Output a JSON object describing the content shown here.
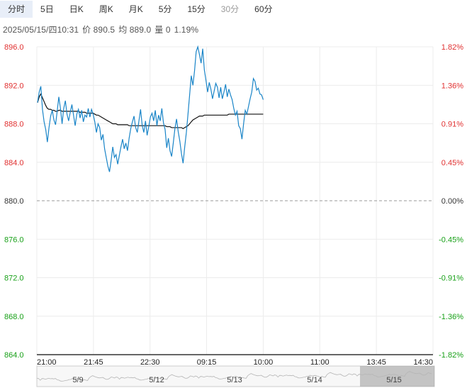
{
  "tabs": [
    {
      "label": "分时",
      "state": "active"
    },
    {
      "label": "5日",
      "state": "normal"
    },
    {
      "label": "日K",
      "state": "normal"
    },
    {
      "label": "周K",
      "state": "normal"
    },
    {
      "label": "月K",
      "state": "normal"
    },
    {
      "label": "5分",
      "state": "normal"
    },
    {
      "label": "15分",
      "state": "normal"
    },
    {
      "label": "30分",
      "state": "muted"
    },
    {
      "label": "60分",
      "state": "normal"
    }
  ],
  "info": {
    "datetime": "2025/05/15/四10:31",
    "price": "价 890.5",
    "avg": "均 889.0",
    "volume": "量 0",
    "change": "1.19%"
  },
  "colors": {
    "up": "#e03030",
    "down": "#18a018",
    "neutral": "#333333",
    "price_line": "#1a85c8",
    "avg_line": "#111111"
  },
  "chart_data": {
    "type": "line",
    "y_left_ticks": [
      "896.0",
      "892.0",
      "888.0",
      "884.0",
      "880.0",
      "876.0",
      "872.0",
      "868.0",
      "864.0"
    ],
    "y_right_ticks": [
      "1.82%",
      "1.36%",
      "0.91%",
      "0.45%",
      "0.00%",
      "-0.45%",
      "-0.91%",
      "-1.36%",
      "-1.82%"
    ],
    "ylim": [
      864.0,
      896.0
    ],
    "baseline": 880.0,
    "x_ticks": [
      "21:00",
      "21:45",
      "22:30",
      "09:15",
      "10:00",
      "11:00",
      "13:45",
      "14:30"
    ],
    "navigator_dates": [
      "5/9",
      "5/12",
      "5/13",
      "5/14",
      "5/15"
    ],
    "series": [
      {
        "values": [
          890.2,
          891.3,
          891.9,
          889.5,
          888.2,
          887.4,
          886.1,
          887.6,
          888.8,
          889.4,
          888.4,
          887.9,
          889.3,
          890.8,
          889.6,
          888.0,
          889.6,
          890.4,
          889.0,
          888.3,
          889.2,
          890.0,
          888.9,
          887.8,
          889.0,
          889.5,
          888.6,
          889.4,
          888.2,
          888.9,
          888.7,
          889.6,
          888.7,
          889.5,
          889.0,
          888.2,
          887.1,
          888.0,
          887.6,
          886.3,
          886.9,
          885.4,
          884.5,
          883.6,
          883.0,
          884.2,
          885.6,
          884.5,
          884.8,
          883.8,
          884.7,
          885.6,
          886.4,
          885.4,
          886.0,
          885.2,
          886.5,
          887.5,
          888.2,
          888.8,
          887.6,
          887.1,
          888.3,
          889.5,
          887.8,
          887.1,
          888.3,
          886.8,
          887.7,
          888.7,
          889.1,
          888.3,
          889.4,
          887.8,
          888.9,
          888.3,
          889.6,
          888.1,
          887.4,
          885.5,
          886.5,
          885.2,
          884.6,
          886.0,
          887.5,
          888.5,
          887.2,
          886.2,
          884.9,
          883.9,
          885.6,
          887.1,
          889.0,
          891.0,
          893.0,
          892.0,
          893.5,
          895.5,
          896.0,
          895.2,
          894.3,
          895.8,
          893.6,
          892.5,
          891.3,
          892.3,
          891.6,
          890.6,
          891.4,
          892.2,
          891.8,
          890.7,
          891.8,
          890.6,
          891.3,
          892.1,
          890.8,
          891.6,
          891.0,
          890.5,
          889.6,
          888.9,
          889.3,
          887.8,
          887.5,
          886.4,
          888.0,
          889.4,
          889.0,
          889.8,
          890.6,
          891.3,
          892.7,
          892.4,
          891.5,
          891.7,
          891.1,
          891.0,
          890.5
        ],
        "avg": [
          890.2,
          890.8,
          891.1,
          890.7,
          890.3,
          889.9,
          889.6,
          889.5,
          889.5,
          889.4,
          889.4,
          889.3,
          889.3,
          889.4,
          889.4,
          889.3,
          889.3,
          889.3,
          889.3,
          889.3,
          889.3,
          889.3,
          889.3,
          889.3,
          889.3,
          889.3,
          889.2,
          889.2,
          889.2,
          889.2,
          889.1,
          889.1,
          889.1,
          889.1,
          889.1,
          889.0,
          888.9,
          888.9,
          888.8,
          888.7,
          888.6,
          888.5,
          888.4,
          888.3,
          888.2,
          888.1,
          888.0,
          888.0,
          888.0,
          887.9,
          887.9,
          887.9,
          887.9,
          887.9,
          887.9,
          887.9,
          887.8,
          887.8,
          887.8,
          887.8,
          887.8,
          887.8,
          887.8,
          887.8,
          887.8,
          887.8,
          887.8,
          887.8,
          887.8,
          887.8,
          887.8,
          887.8,
          887.8,
          887.8,
          887.8,
          887.8,
          887.8,
          887.8,
          887.8,
          887.7,
          887.7,
          887.7,
          887.6,
          887.6,
          887.6,
          887.6,
          887.6,
          887.6,
          887.6,
          887.5,
          887.6,
          887.7,
          887.8,
          888.0,
          888.2,
          888.4,
          888.5,
          888.6,
          888.7,
          888.8,
          888.8,
          888.8,
          888.9,
          888.9,
          888.9,
          888.9,
          888.9,
          888.9,
          888.9,
          888.9,
          888.9,
          888.9,
          888.9,
          888.9,
          888.9,
          888.9,
          888.9,
          889.0,
          889.0,
          889.0,
          889.0,
          889.0,
          889.0,
          889.0,
          889.0,
          889.0,
          889.0,
          889.0,
          889.0,
          889.0,
          889.0,
          889.0,
          889.0,
          889.0,
          889.0,
          889.0,
          889.0,
          889.0,
          889.0
        ]
      }
    ]
  }
}
